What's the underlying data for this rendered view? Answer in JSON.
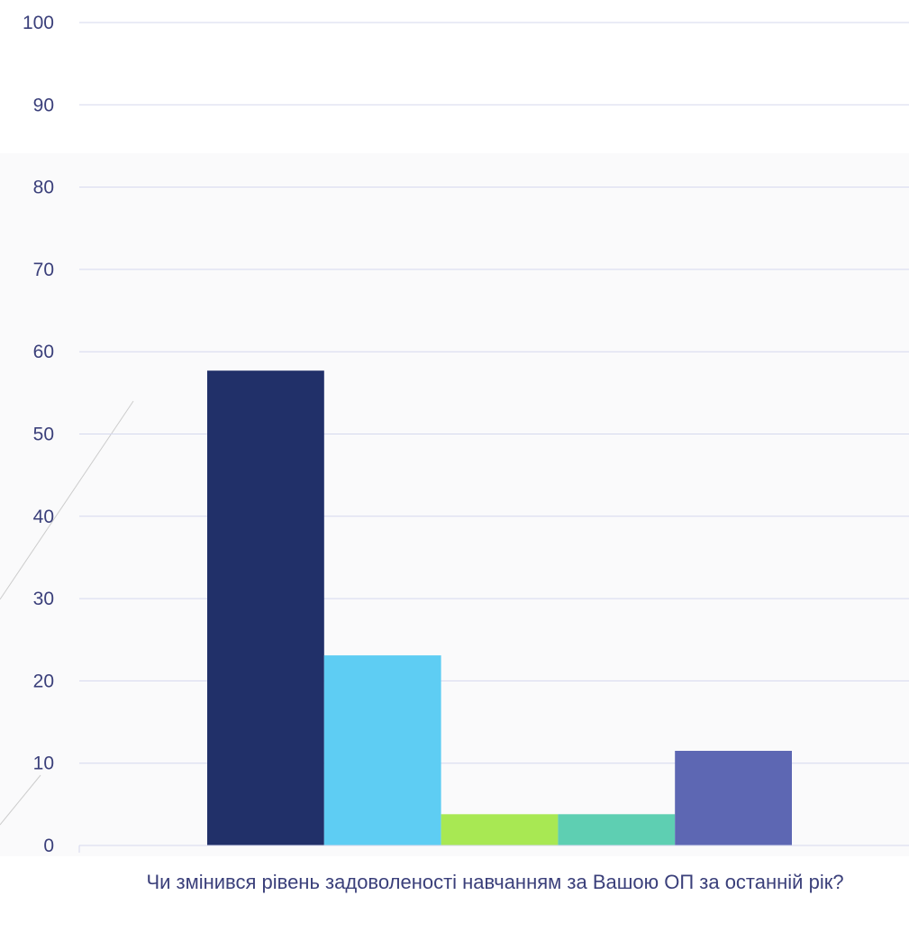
{
  "chart_data": {
    "type": "bar",
    "categories": [
      "Чи змінився рівень задоволеності навчанням за Вашою ОП за останній рік?"
    ],
    "series": [
      {
        "values": [
          57.7
        ],
        "color": "#213069"
      },
      {
        "values": [
          23.1
        ],
        "color": "#5ecdf3"
      },
      {
        "values": [
          3.8
        ],
        "color": "#a8e853"
      },
      {
        "values": [
          3.8
        ],
        "color": "#5ecfb2"
      },
      {
        "values": [
          11.5
        ],
        "color": "#5d67b3"
      }
    ],
    "ylim": [
      0,
      100
    ],
    "yticks": [
      0,
      10,
      20,
      30,
      40,
      50,
      60,
      70,
      80,
      90,
      100
    ],
    "grid": true,
    "legend": "none"
  },
  "colors": {
    "gridline": "#d5d8ee",
    "text": "#3a3f7a"
  }
}
